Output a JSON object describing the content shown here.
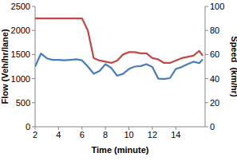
{
  "chart_data": {
    "type": "line",
    "x_label": "Time (minute)",
    "y_label": "Flow (Veh/hr/lane)",
    "y2_label": "Speed  (km/hr)",
    "x": [
      2,
      2.5,
      3,
      3.5,
      4,
      4.5,
      5,
      5.5,
      6,
      6.5,
      7,
      7.5,
      8,
      8.5,
      9,
      9.5,
      10,
      10.5,
      11,
      11.5,
      12,
      12.5,
      13,
      13.5,
      14,
      14.5,
      15,
      15.5,
      16,
      16.3
    ],
    "series": [
      {
        "color": "#4a7ebb",
        "values": [
          1250,
          1520,
          1420,
          1390,
          1390,
          1380,
          1390,
          1400,
          1380,
          1250,
          1100,
          1160,
          1300,
          1220,
          1060,
          1100,
          1200,
          1250,
          1260,
          1300,
          1240,
          1000,
          990,
          1010,
          1200,
          1240,
          1300,
          1350,
          1320,
          1400
        ]
      },
      {
        "color": "#be4b48",
        "axis": "y2",
        "values": [
          90,
          90,
          90,
          90,
          90,
          90,
          90,
          90,
          90,
          80,
          57,
          55,
          54,
          53,
          55,
          60,
          62,
          62,
          61,
          61,
          57,
          56,
          53,
          53,
          55,
          57,
          58,
          59,
          63,
          59
        ]
      }
    ],
    "xlim": [
      2,
      16.5
    ],
    "xticks": [
      2,
      4,
      6,
      8,
      10,
      12,
      14
    ],
    "ylim": [
      0,
      2500
    ],
    "yticks": [
      0,
      500,
      1000,
      1500,
      2000,
      2500
    ],
    "y2lim": [
      0,
      100
    ],
    "y2ticks": [
      0,
      20,
      40,
      60,
      80,
      100
    ],
    "grid": false
  }
}
